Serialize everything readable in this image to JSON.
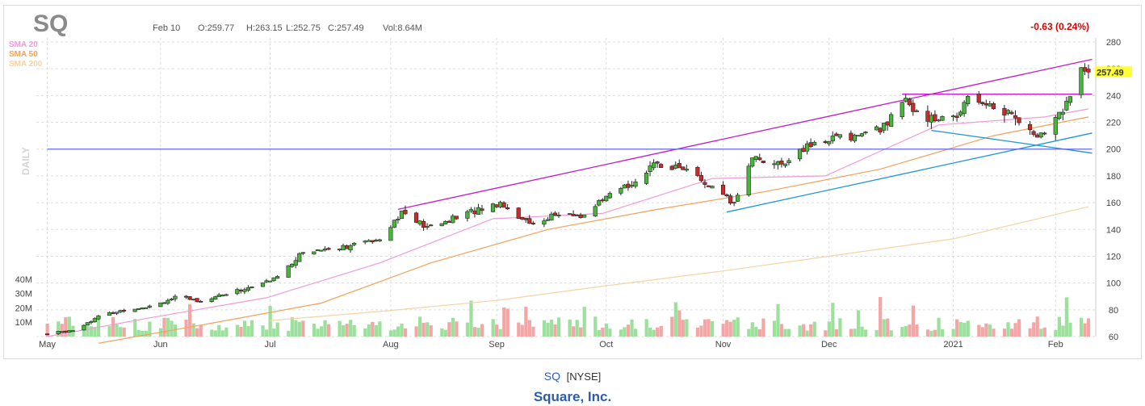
{
  "header": {
    "symbol": "SQ",
    "date": "Feb 10",
    "open": "O:259.77",
    "high": "H:263.15",
    "low": "L:252.75",
    "close": "C:257.49",
    "volume": "Vol:8.64M",
    "change": "-0.63 (0.24%)",
    "last_price": "257.49",
    "period": "DAILY"
  },
  "legend": [
    {
      "label": "SMA 20",
      "color": "#f29ad8"
    },
    {
      "label": "SMA 50",
      "color": "#f2a25a"
    },
    {
      "label": "SMA 200",
      "color": "#f5d3a4"
    }
  ],
  "footer": {
    "ticker": "SQ",
    "exchange": "[NYSE]",
    "company": "Square, Inc."
  },
  "colors": {
    "up": "#45b83a",
    "down": "#cc2a2a",
    "vol_up": "#9be09b",
    "vol_down": "#f4a6a6",
    "trendline": "#c21ac7",
    "support": "#1e95d6",
    "horizontal": "#6666ee",
    "change": "#dd0000",
    "price_tag": "#ffff33"
  },
  "chart_data": {
    "type": "candlestick",
    "x_labels": [
      "May",
      "Jun",
      "Jul",
      "Aug",
      "Sep",
      "Oct",
      "Nov",
      "Dec",
      "2021",
      "Feb"
    ],
    "y_ticks": [
      60,
      80,
      100,
      120,
      140,
      160,
      180,
      200,
      220,
      240,
      260,
      280
    ],
    "ylim": [
      60,
      283
    ],
    "volume_ticks": [
      "10M",
      "20M",
      "30M",
      "40M"
    ],
    "volume_ylim_millions": [
      0,
      45
    ],
    "grid": true,
    "anchor_prices": [
      [
        "2020-05-01",
        62
      ],
      [
        "2020-05-08",
        65
      ],
      [
        "2020-05-15",
        75
      ],
      [
        "2020-05-22",
        80
      ],
      [
        "2020-05-29",
        83
      ],
      [
        "2020-06-05",
        89
      ],
      [
        "2020-06-12",
        87
      ],
      [
        "2020-06-19",
        92
      ],
      [
        "2020-06-26",
        97
      ],
      [
        "2020-07-02",
        103
      ],
      [
        "2020-07-10",
        123
      ],
      [
        "2020-07-17",
        126
      ],
      [
        "2020-07-24",
        128
      ],
      [
        "2020-07-31",
        134
      ],
      [
        "2020-08-06",
        153
      ],
      [
        "2020-08-13",
        141
      ],
      [
        "2020-08-20",
        148
      ],
      [
        "2020-08-27",
        155
      ],
      [
        "2020-09-02",
        160
      ],
      [
        "2020-09-10",
        144
      ],
      [
        "2020-09-17",
        151
      ],
      [
        "2020-09-24",
        150
      ],
      [
        "2020-10-01",
        163
      ],
      [
        "2020-10-08",
        175
      ],
      [
        "2020-10-15",
        189
      ],
      [
        "2020-10-22",
        186
      ],
      [
        "2020-10-29",
        172
      ],
      [
        "2020-11-05",
        159
      ],
      [
        "2020-11-10",
        195
      ],
      [
        "2020-11-17",
        188
      ],
      [
        "2020-11-24",
        200
      ],
      [
        "2020-12-01",
        208
      ],
      [
        "2020-12-08",
        210
      ],
      [
        "2020-12-15",
        215
      ],
      [
        "2020-12-22",
        235
      ],
      [
        "2020-12-29",
        222
      ],
      [
        "2021-01-05",
        224
      ],
      [
        "2021-01-08",
        242
      ],
      [
        "2021-01-14",
        232
      ],
      [
        "2021-01-21",
        225
      ],
      [
        "2021-01-27",
        207
      ],
      [
        "2021-02-02",
        226
      ],
      [
        "2021-02-05",
        240
      ],
      [
        "2021-02-08",
        258
      ],
      [
        "2021-02-10",
        257.49
      ]
    ],
    "sma_20": [
      [
        "2020-05-01",
        60
      ],
      [
        "2020-05-29",
        74
      ],
      [
        "2020-06-30",
        89
      ],
      [
        "2020-07-31",
        115
      ],
      [
        "2020-08-31",
        148
      ],
      [
        "2020-09-30",
        152
      ],
      [
        "2020-10-30",
        178
      ],
      [
        "2020-11-30",
        180
      ],
      [
        "2020-12-31",
        218
      ],
      [
        "2021-01-29",
        224
      ],
      [
        "2021-02-10",
        230
      ]
    ],
    "sma_50": [
      [
        "2020-05-15",
        55
      ],
      [
        "2020-06-15",
        70
      ],
      [
        "2020-07-15",
        85
      ],
      [
        "2020-08-14",
        115
      ],
      [
        "2020-09-15",
        140
      ],
      [
        "2020-10-15",
        155
      ],
      [
        "2020-11-13",
        168
      ],
      [
        "2020-12-15",
        185
      ],
      [
        "2021-01-15",
        210
      ],
      [
        "2021-02-10",
        224
      ]
    ],
    "sma_200": [
      [
        "2020-07-01",
        72
      ],
      [
        "2020-08-01",
        79
      ],
      [
        "2020-09-01",
        87
      ],
      [
        "2020-10-01",
        98
      ],
      [
        "2020-11-02",
        109
      ],
      [
        "2020-12-01",
        120
      ],
      [
        "2021-01-04",
        133
      ],
      [
        "2021-02-10",
        157
      ]
    ],
    "annotations": [
      {
        "type": "trendline",
        "from": [
          "2020-08-05",
          155
        ],
        "to": [
          "2021-02-11",
          267
        ]
      },
      {
        "type": "trendline",
        "from": [
          "2020-11-03",
          153
        ],
        "to": [
          "2021-02-11",
          212
        ]
      },
      {
        "type": "trendline",
        "from": [
          "2020-12-29",
          214
        ],
        "to": [
          "2021-02-11",
          197
        ]
      },
      {
        "type": "horizontal",
        "from": [
          "2020-12-21",
          241
        ],
        "to": [
          "2021-02-11",
          241
        ]
      },
      {
        "type": "horizontal",
        "from": [
          "2020-05-01",
          200
        ],
        "to": [
          "2021-02-11",
          200
        ]
      }
    ]
  }
}
